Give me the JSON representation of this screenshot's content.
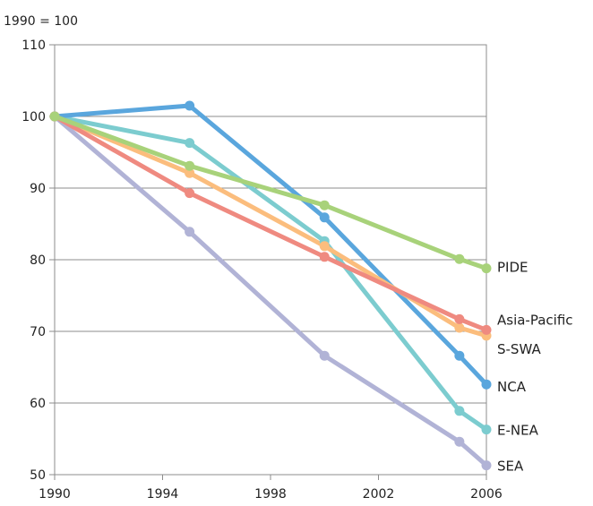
{
  "chart_data": {
    "type": "line",
    "unit_label": "1990 = 100",
    "x": [
      1990,
      1995,
      2000,
      2005,
      2006
    ],
    "xticks": [
      "1990",
      "1994",
      "1998",
      "2002",
      "2006"
    ],
    "xlim": [
      1990,
      2006
    ],
    "yticks": [
      "50",
      "60",
      "70",
      "80",
      "90",
      "100",
      "110"
    ],
    "ylim": [
      50,
      110
    ],
    "grid": "horizontal",
    "series": [
      {
        "name": "SEA",
        "color": "#b1b3d6",
        "values": [
          100,
          83.9,
          66.6,
          54.6,
          51.3
        ]
      },
      {
        "name": "E-NEA",
        "color": "#7ccccf",
        "values": [
          100,
          96.3,
          82.6,
          58.9,
          56.3
        ]
      },
      {
        "name": "NCA",
        "color": "#5aa6dd",
        "values": [
          100,
          101.5,
          85.9,
          66.6,
          62.6
        ]
      },
      {
        "name": "S-SWA",
        "color": "#fbbd7d",
        "values": [
          100,
          92.1,
          81.9,
          70.5,
          69.4
        ]
      },
      {
        "name": "Asia-Pacific",
        "color": "#ef8a80",
        "values": [
          100,
          89.3,
          80.4,
          71.7,
          70.2
        ]
      },
      {
        "name": "PIDE",
        "color": "#a8d27a",
        "values": [
          100,
          93.1,
          87.6,
          80.1,
          78.8
        ]
      }
    ]
  }
}
